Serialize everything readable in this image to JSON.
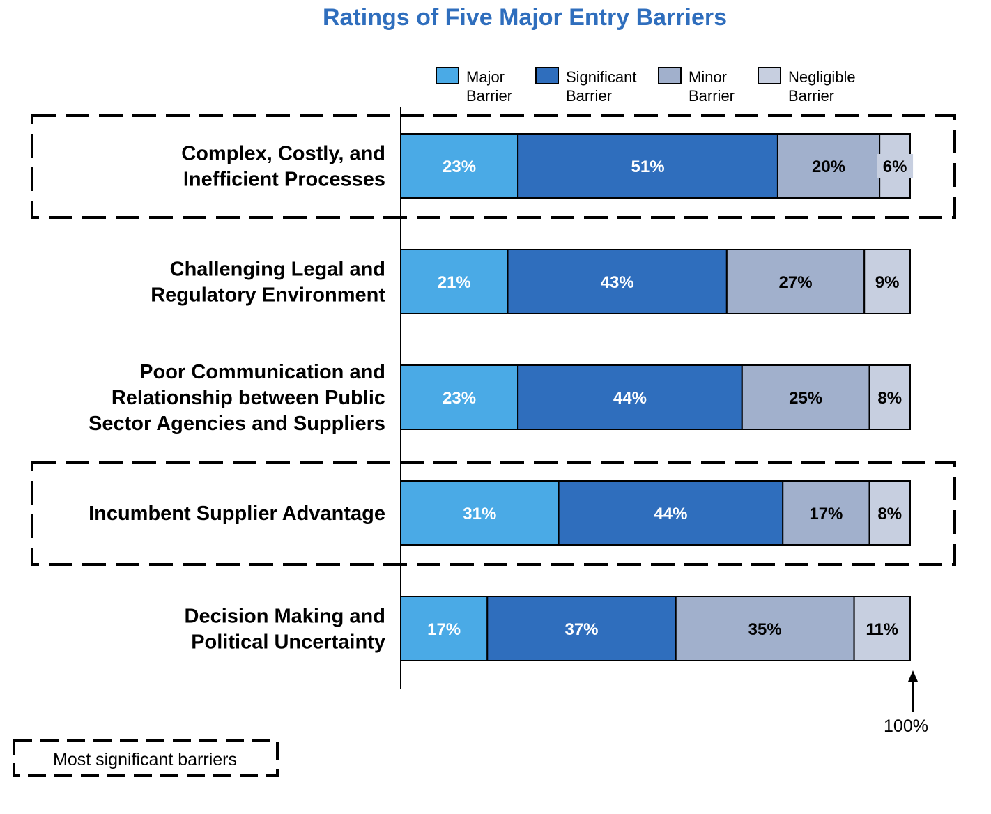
{
  "chart_data": {
    "type": "bar",
    "orientation": "horizontal",
    "stacked": true,
    "title": "Ratings of Five Major Entry Barriers",
    "categories": [
      [
        "Complex, Costly, and",
        "Inefficient Processes"
      ],
      [
        "Challenging Legal and",
        "Regulatory Environment"
      ],
      [
        "Poor Communication and",
        "Relationship between Public",
        "Sector Agencies and Suppliers"
      ],
      [
        "Incumbent Supplier Advantage"
      ],
      [
        "Decision Making and",
        "Political Uncertainty"
      ]
    ],
    "series": [
      {
        "name": [
          "Major",
          "Barrier"
        ],
        "color": "#4aaae6",
        "label_color": "#ffffff",
        "values": [
          23,
          21,
          23,
          31,
          17
        ],
        "labels": [
          "23%",
          "21%",
          "23%",
          "31%",
          "17%"
        ]
      },
      {
        "name": [
          "Significant",
          "Barrier"
        ],
        "color": "#2f6ebd",
        "label_color": "#ffffff",
        "values": [
          51,
          43,
          44,
          44,
          37
        ],
        "labels": [
          "51%",
          "43%",
          "44%",
          "44%",
          "37%"
        ]
      },
      {
        "name": [
          "Minor",
          "Barrier"
        ],
        "color": "#a1b0cc",
        "label_color": "#000000",
        "values": [
          20,
          27,
          25,
          17,
          35
        ],
        "labels": [
          "20%",
          "27%",
          "25%",
          "17%",
          "35%"
        ]
      },
      {
        "name": [
          "Negligible",
          "Barrier"
        ],
        "color": "#c7cfe0",
        "label_color": "#000000",
        "values": [
          6,
          9,
          8,
          8,
          11
        ],
        "labels": [
          "6%",
          "9%",
          "8%",
          "8%",
          "11%"
        ]
      }
    ],
    "xlim": [
      0,
      100
    ],
    "grid": false,
    "legend_position": "top-right",
    "highlighted_categories": [
      0,
      3
    ],
    "highlight_legend": "Most significant barriers",
    "reference_marker_label": "100%"
  },
  "colors": {
    "title": "#2f6ebd",
    "outline": "#000000"
  }
}
